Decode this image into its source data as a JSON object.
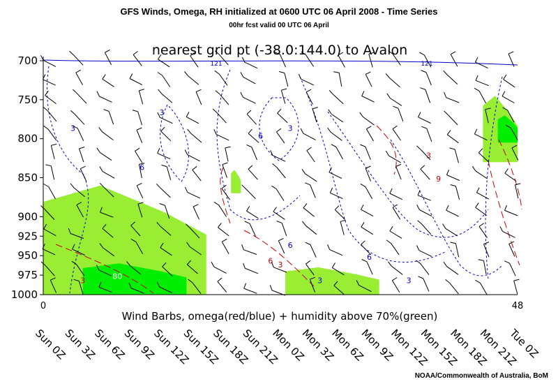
{
  "header": {
    "title": "GFS Winds, Omega, RH initialized at 0600 UTC  06 April 2008 - Time Series",
    "subtitle": "00hr fcst valid 00 UTC 06 April"
  },
  "credit": "NOAA/Commonwealth of Australia, BoM",
  "chart_data": {
    "type": "time-height cross-section (wind barbs, omega contours, humidity shading)",
    "title": "nearest grid pt (-38.0:144.0) to Avalon",
    "xlabel": "Wind Barbs, omega(red/blue) + humidity above 70%(green)",
    "ylabel": "",
    "x_range_hours": [
      0,
      48
    ],
    "x_end_labels": [
      "0",
      "48"
    ],
    "y_levels_hPa": [
      700,
      750,
      800,
      850,
      900,
      925,
      950,
      975,
      1000
    ],
    "y_tick_labels": [
      "700",
      "750",
      "800",
      "850",
      "900",
      "925",
      "950",
      "975",
      "1000"
    ],
    "time_labels": [
      "Sun 0Z",
      "Sun 3Z",
      "Sun 6Z",
      "Sun 9Z",
      "Sun 12Z",
      "Sun 15Z",
      "Sun 18Z",
      "Sun 21Z",
      "Mon 0Z",
      "Mon 3Z",
      "Mon 6Z",
      "Mon 9Z",
      "Mon 12Z",
      "Mon 15Z",
      "Mon 18Z",
      "Mon 21Z",
      "Tue 0Z"
    ],
    "humidity_threshold_pct": 70,
    "humidity_shading": [
      {
        "level": "above 70%",
        "color": "#99ee33",
        "regions": [
          {
            "hours": [
              0,
              16.5
            ],
            "levels_hPa": [
              860,
              1000
            ]
          },
          {
            "hours": [
              24.5,
              34
            ],
            "levels_hPa": [
              965,
              1000
            ]
          },
          {
            "hours": [
              19,
              20
            ],
            "levels_hPa": [
              840,
              870
            ]
          },
          {
            "hours": [
              44.5,
              48
            ],
            "levels_hPa": [
              745,
              830
            ]
          }
        ]
      },
      {
        "level": "above 80%",
        "color": "#00ee00",
        "regions": [
          {
            "hours": [
              4,
              14.5
            ],
            "levels_hPa": [
              960,
              1000
            ]
          },
          {
            "hours": [
              46,
              48
            ],
            "levels_hPa": [
              770,
              805
            ]
          }
        ]
      }
    ],
    "omega_contours": {
      "negative_color": "#0000cc",
      "positive_color": "#cc0000",
      "labels": [
        {
          "value": "-3",
          "hour": 3,
          "level_hPa": 790
        },
        {
          "value": "-6",
          "hour": 10,
          "level_hPa": 840
        },
        {
          "value": "-3",
          "hour": 12,
          "level_hPa": 770
        },
        {
          "value": "-3",
          "hour": 25,
          "level_hPa": 790
        },
        {
          "value": "-6",
          "hour": 22,
          "level_hPa": 800
        },
        {
          "value": "-6",
          "hour": 25,
          "level_hPa": 940
        },
        {
          "value": "-3",
          "hour": 28,
          "level_hPa": 985
        },
        {
          "value": "-6",
          "hour": 33,
          "level_hPa": 955
        },
        {
          "value": "-3",
          "hour": 37,
          "level_hPa": 985
        },
        {
          "value": "6",
          "hour": 23,
          "level_hPa": 960
        },
        {
          "value": "3",
          "hour": 24,
          "level_hPa": 965
        },
        {
          "value": "3",
          "hour": 4,
          "level_hPa": 985
        },
        {
          "value": "3",
          "hour": 39,
          "level_hPa": 825
        },
        {
          "value": "9",
          "hour": 40,
          "level_hPa": 855
        }
      ]
    },
    "humidity_label": {
      "value": "80",
      "hour": 7.5,
      "level_hPa": 980
    },
    "top_labels": [
      "121",
      "121"
    ]
  }
}
